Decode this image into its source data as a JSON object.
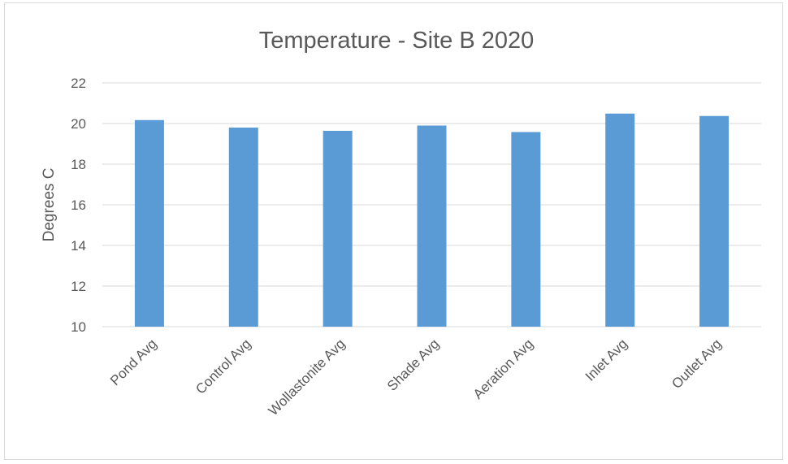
{
  "chart_data": {
    "type": "bar",
    "title": "Temperature - Site B 2020",
    "xlabel": "",
    "ylabel": "Degrees C",
    "categories": [
      "Pond Avg",
      "Control Avg",
      "Wollastonite Avg",
      "Shade Avg",
      "Aeration Avg",
      "Inlet Avg",
      "Outlet Avg"
    ],
    "values": [
      20.17,
      19.8,
      19.64,
      19.9,
      19.58,
      20.49,
      20.37
    ],
    "ylim": [
      10,
      22
    ],
    "yticks": [
      10,
      12,
      14,
      16,
      18,
      20,
      22
    ],
    "grid": true,
    "legend": "none",
    "bar_color": "#5b9bd5",
    "grid_color": "#d9d9d9",
    "text_color": "#595959"
  }
}
